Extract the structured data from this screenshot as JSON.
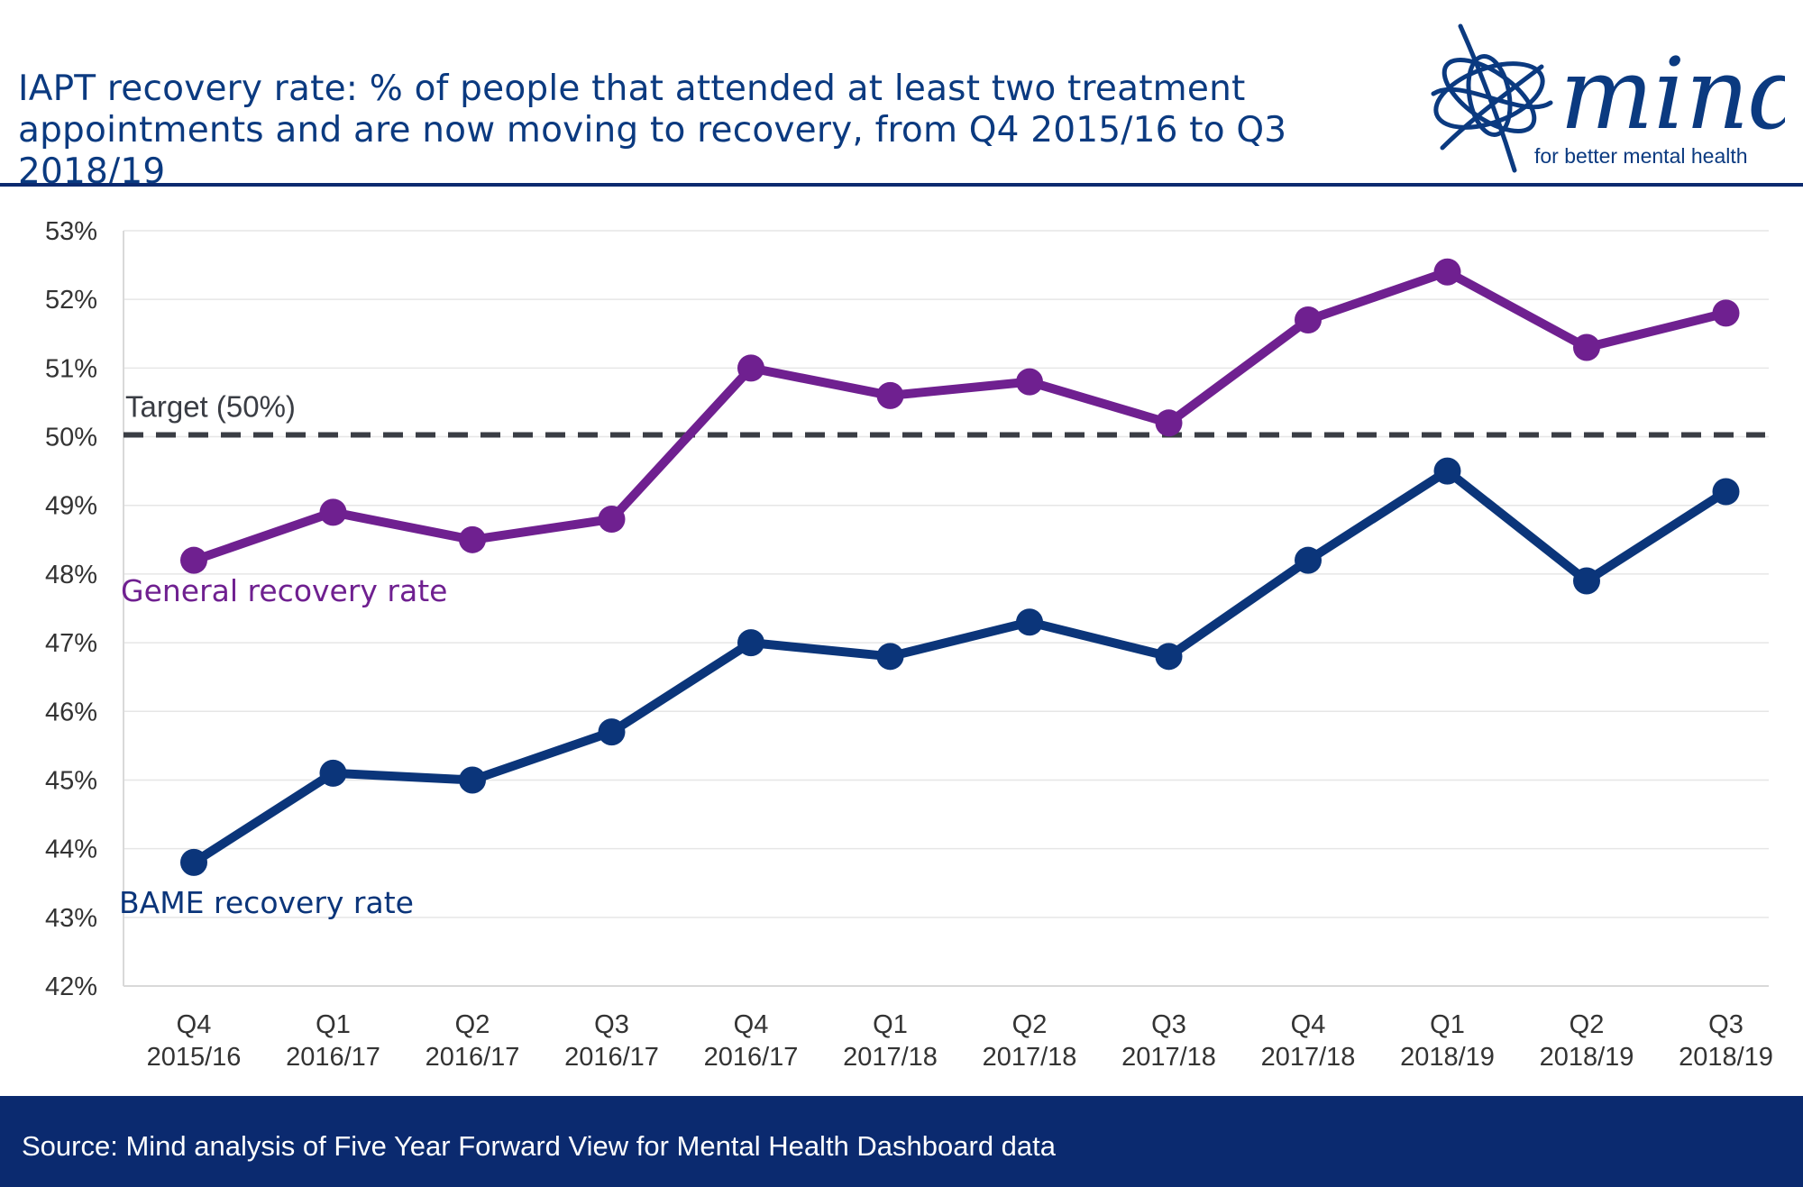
{
  "header": {
    "title": "IAPT recovery rate: % of people that attended at least two treatment appointments and are now moving to recovery, from Q4 2015/16 to Q3 2018/19"
  },
  "logo": {
    "brand": "mind",
    "tagline": "for better mental health",
    "color": "#0b3a80"
  },
  "footer": {
    "source": "Source: Mind analysis of Five Year Forward View for Mental Health Dashboard data",
    "background": "#0b2a6f"
  },
  "chart_data": {
    "type": "line",
    "title": "IAPT recovery rate: % of people that attended at least two treatment appointments and are now moving to recovery, from Q4 2015/16 to Q3 2018/19",
    "xlabel": "",
    "ylabel": "",
    "ylim": [
      42,
      53
    ],
    "yticks": [
      "42%",
      "43%",
      "44%",
      "45%",
      "46%",
      "47%",
      "48%",
      "49%",
      "50%",
      "51%",
      "52%",
      "53%"
    ],
    "grid": true,
    "categories": [
      [
        "Q4",
        "2015/16"
      ],
      [
        "Q1",
        "2016/17"
      ],
      [
        "Q2",
        "2016/17"
      ],
      [
        "Q3",
        "2016/17"
      ],
      [
        "Q4",
        "2016/17"
      ],
      [
        "Q1",
        "2017/18"
      ],
      [
        "Q2",
        "2017/18"
      ],
      [
        "Q3",
        "2017/18"
      ],
      [
        "Q4",
        "2017/18"
      ],
      [
        "Q1",
        "2018/19"
      ],
      [
        "Q2",
        "2018/19"
      ],
      [
        "Q3",
        "2018/19"
      ]
    ],
    "series": [
      {
        "name": "General recovery rate",
        "color": "#6f2090",
        "values": [
          48.2,
          48.9,
          48.5,
          48.8,
          51.0,
          50.6,
          50.8,
          50.2,
          51.7,
          52.4,
          51.3,
          51.8
        ]
      },
      {
        "name": "BAME recovery rate",
        "color": "#0b357a",
        "values": [
          43.8,
          45.1,
          45.0,
          45.7,
          47.0,
          46.8,
          47.3,
          46.8,
          48.2,
          49.5,
          47.9,
          49.2
        ]
      }
    ],
    "target": {
      "label": "Target (50%)",
      "value": 50,
      "color": "#3a3d44",
      "style": "dashed"
    }
  }
}
